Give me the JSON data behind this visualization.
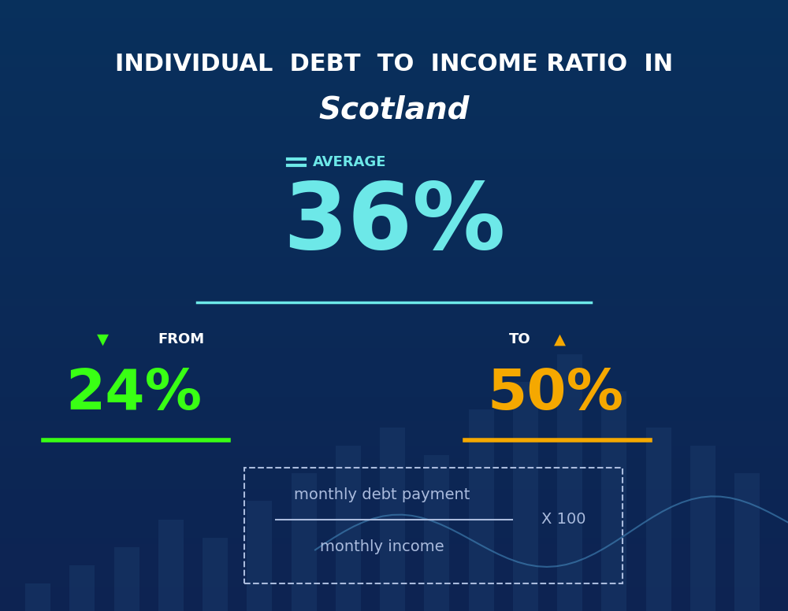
{
  "title_line1": "INDIVIDUAL  DEBT  TO  INCOME RATIO  IN",
  "title_line2": "Scotland",
  "bg_color_top": "#0d2352",
  "bg_color_bottom": "#0a3a6b",
  "average_label": "AVERAGE",
  "average_value": "36%",
  "average_color": "#6de8e8",
  "from_label": "FROM",
  "from_value": "24%",
  "from_color": "#39ff14",
  "to_label": "TO",
  "to_value": "50%",
  "to_color": "#f5a800",
  "formula_numerator": "monthly debt payment",
  "formula_denominator": "monthly income",
  "formula_multiplier": "X 100",
  "formula_text_color": "#aabbdd",
  "divider_color": "#6de8e8",
  "title1_color": "#ffffff",
  "title2_color": "#ffffff",
  "average_label_color": "#6de8e8"
}
